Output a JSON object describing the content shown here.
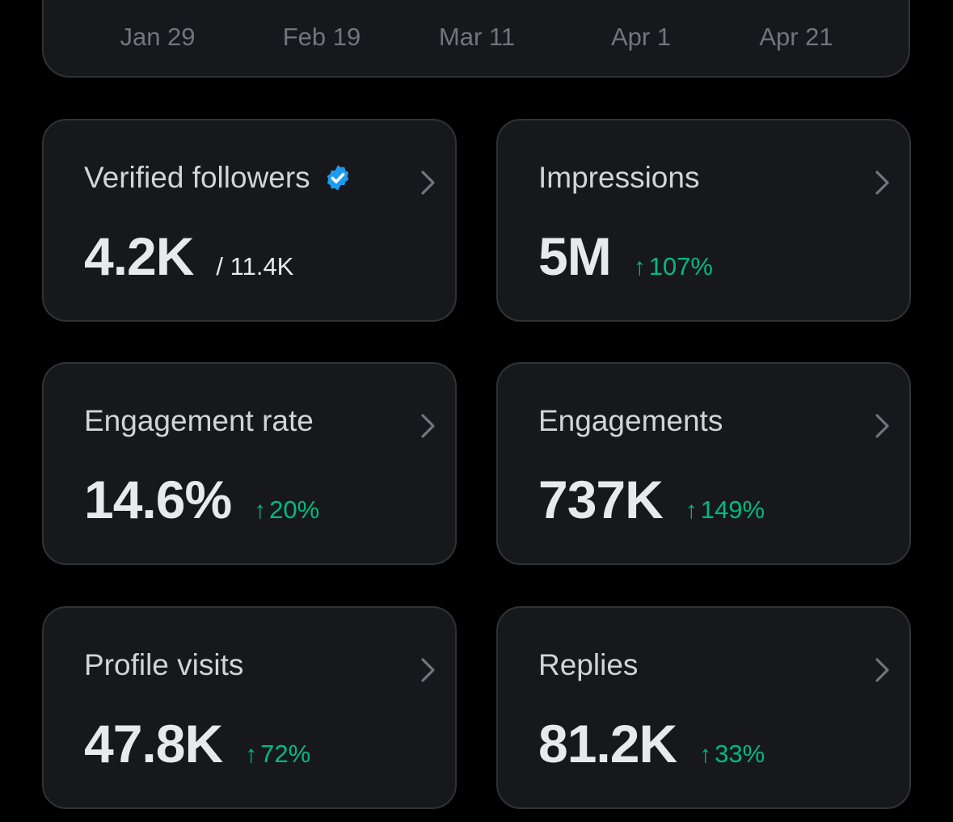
{
  "chart_axis": {
    "dates": [
      "Jan 29",
      "Feb 19",
      "Mar 11",
      "Apr 1",
      "Apr 21"
    ]
  },
  "colors": {
    "background": "#000000",
    "card": "#16181c",
    "border": "#2f3336",
    "positive": "#00ba7c",
    "verified": "#1d9bf0"
  },
  "cards": {
    "verified_followers": {
      "title": "Verified followers",
      "value": "4.2K",
      "total": "/ 11.4K",
      "icon": "verified-badge-icon"
    },
    "impressions": {
      "title": "Impressions",
      "value": "5M",
      "arrow": "↑",
      "delta": "107%"
    },
    "engagement_rate": {
      "title": "Engagement rate",
      "value": "14.6%",
      "arrow": "↑",
      "delta": "20%"
    },
    "engagements": {
      "title": "Engagements",
      "value": "737K",
      "arrow": "↑",
      "delta": "149%"
    },
    "profile_visits": {
      "title": "Profile visits",
      "value": "47.8K",
      "arrow": "↑",
      "delta": "72%"
    },
    "replies": {
      "title": "Replies",
      "value": "81.2K",
      "arrow": "↑",
      "delta": "33%"
    }
  }
}
